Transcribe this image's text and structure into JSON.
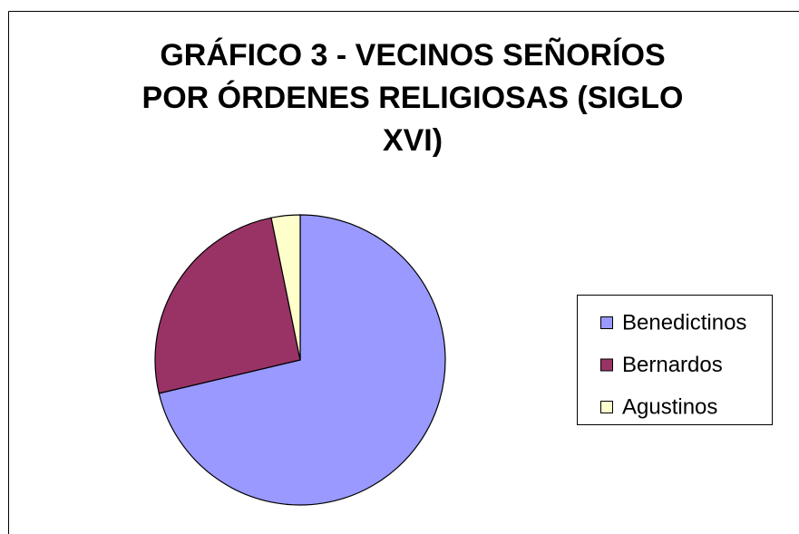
{
  "chart_data": {
    "type": "pie",
    "title": "GRÁFICO 3 - VECINOS SEÑORÍOS POR ÓRDENES RELIGIOSAS (SIGLO XVI)",
    "categories": [
      "Benedictinos",
      "Bernardos",
      "Agustinos"
    ],
    "values": [
      71.3,
      25.5,
      3.2
    ],
    "colors": [
      "#9999ff",
      "#993366",
      "#ffffcc"
    ],
    "legend": "right"
  }
}
